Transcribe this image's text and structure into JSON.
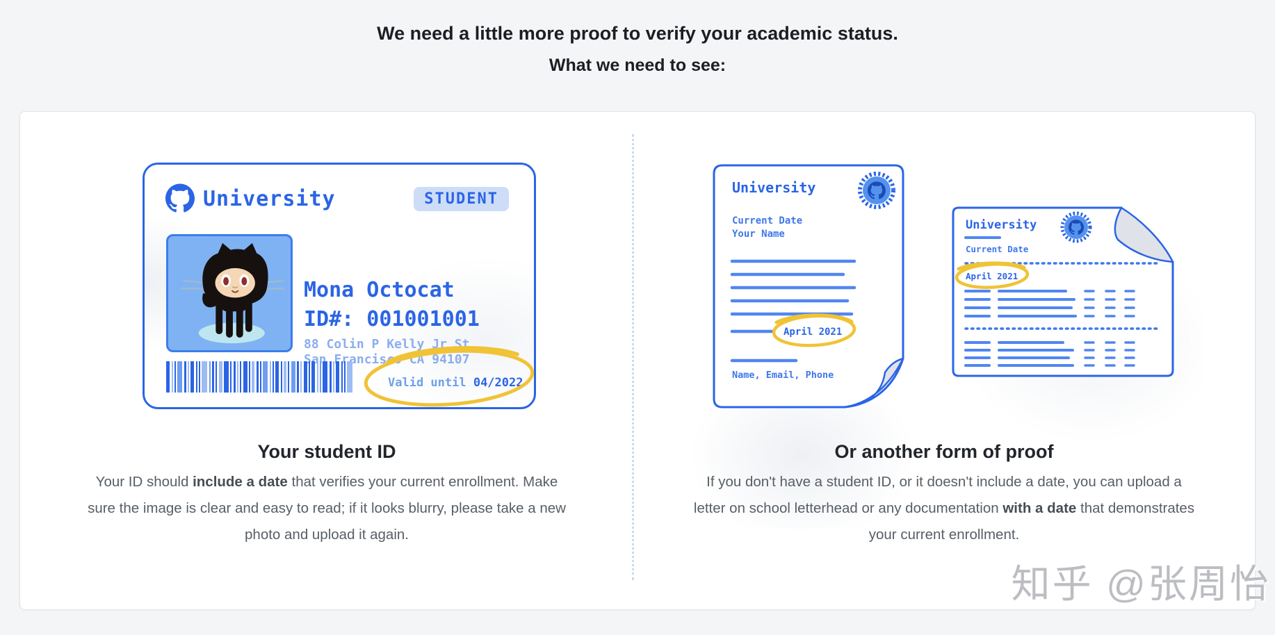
{
  "header": {
    "line1": "We need a little more proof to verify your academic status.",
    "line2": "What we need to see:"
  },
  "left": {
    "heading": "Your student ID",
    "body_prefix": "Your ID should ",
    "body_bold": "include a date",
    "body_suffix": " that verifies your current enrollment. Make sure the image is clear and easy to read; if it looks blurry, please take a new photo and upload it again.",
    "id_card": {
      "university": "University",
      "badge": "STUDENT",
      "name": "Mona Octocat",
      "id_number": "ID#: 001001001",
      "address_line1": "88 Colin P Kelly Jr St",
      "address_line2": "San Francisco CA 94107",
      "valid_label": "Valid until ",
      "valid_date": "04/2022"
    }
  },
  "right": {
    "heading": "Or another form of proof",
    "body_prefix": "If you don't have a student ID, or it doesn't include a date, you can upload a letter on school letterhead or any documentation ",
    "body_bold": "with a date",
    "body_suffix": " that demonstrates your current enrollment.",
    "letter": {
      "university": "University",
      "date_label": "Current Date",
      "name_label": "Your Name",
      "circled_date": "April 2021",
      "contact": "Name, Email, Phone"
    },
    "transcript": {
      "university": "University",
      "date_label": "Current Date",
      "circled_date": "April 2021"
    }
  },
  "watermark": "知乎 @张周怡",
  "colors": {
    "accent_blue": "#2b65e5",
    "line_blue": "#4f86ef",
    "light_blue_text": "#8aaeee",
    "badge_bg": "#cdddf8",
    "highlight_yellow": "#f0c336"
  }
}
